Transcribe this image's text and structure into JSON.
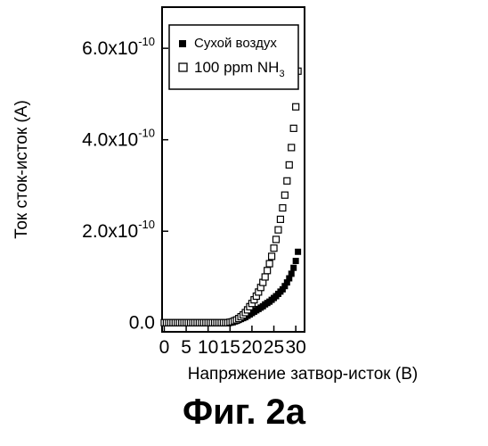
{
  "caption": "Фиг. 2a",
  "chart_data": {
    "type": "scatter",
    "title": "",
    "xlabel": "Напряжение затвор-исток (В)",
    "ylabel": "Ток сток-исток (A)",
    "xlim": [
      -0.5,
      32
    ],
    "ylim": [
      -2e-11,
      6.9e-10
    ],
    "x_ticks": [
      0,
      5,
      10,
      15,
      20,
      25,
      30
    ],
    "x_tick_labels": [
      "0",
      "5",
      "10",
      "15",
      "20",
      "25",
      "30"
    ],
    "y_ticks": [
      0,
      2e-10,
      4e-10,
      6e-10
    ],
    "y_tick_labels": [
      {
        "mantissa": "0.0",
        "exp": ""
      },
      {
        "mantissa": "2.0x10",
        "exp": "-10"
      },
      {
        "mantissa": "4.0x10",
        "exp": "-10"
      },
      {
        "mantissa": "6.0x10",
        "exp": "-10"
      }
    ],
    "legend_position": "top-left",
    "series": [
      {
        "name": "Сухой воздух",
        "marker": "filled-square",
        "color": "#000000",
        "x": [
          0,
          0.5,
          1,
          1.5,
          2,
          2.5,
          3,
          3.5,
          4,
          4.5,
          5,
          5.5,
          6,
          6.5,
          7,
          7.5,
          8,
          8.5,
          9,
          9.5,
          10,
          10.5,
          11,
          11.5,
          12,
          12.5,
          13,
          13.5,
          14,
          14.5,
          15,
          15.5,
          16,
          16.5,
          17,
          17.5,
          18,
          18.5,
          19,
          19.5,
          20,
          20.5,
          21,
          21.5,
          22,
          22.5,
          23,
          23.5,
          24,
          24.5,
          25,
          25.5,
          26,
          26.5,
          27,
          27.5,
          28,
          28.5,
          29,
          29.5,
          30,
          30.5
        ],
        "y": [
          0,
          0,
          0,
          0,
          0,
          0,
          0,
          0,
          0,
          0,
          0,
          0,
          0,
          0,
          0,
          0,
          0,
          0,
          0,
          0,
          0,
          0,
          0,
          0,
          0,
          0,
          0,
          0,
          0,
          0,
          1e-12,
          2e-12,
          3e-12,
          4e-12,
          6e-12,
          8e-12,
          1e-11,
          1.2e-11,
          1.5e-11,
          1.8e-11,
          2.1e-11,
          2.4e-11,
          2.7e-11,
          3e-11,
          3.3e-11,
          3.6e-11,
          4e-11,
          4.3e-11,
          4.6e-11,
          5e-11,
          5.4e-11,
          5.8e-11,
          6.3e-11,
          6.8e-11,
          7.3e-11,
          8e-11,
          8.8e-11,
          9.7e-11,
          1.07e-10,
          1.2e-10,
          1.35e-10,
          1.55e-10
        ]
      },
      {
        "name": "100 ppm NH",
        "name_sub": "3",
        "marker": "open-square",
        "color": "#000000",
        "x": [
          0,
          0.5,
          1,
          1.5,
          2,
          2.5,
          3,
          3.5,
          4,
          4.5,
          5,
          5.5,
          6,
          6.5,
          7,
          7.5,
          8,
          8.5,
          9,
          9.5,
          10,
          10.5,
          11,
          11.5,
          12,
          12.5,
          13,
          13.5,
          14,
          14.5,
          15,
          15.5,
          16,
          16.5,
          17,
          17.5,
          18,
          18.5,
          19,
          19.5,
          20,
          20.5,
          21,
          21.5,
          22,
          22.5,
          23,
          23.5,
          24,
          24.5,
          25,
          25.5,
          26,
          26.5,
          27,
          27.5,
          28,
          28.5,
          29,
          29.5,
          30,
          30.5
        ],
        "y": [
          0,
          0,
          0,
          0,
          0,
          0,
          0,
          0,
          0,
          0,
          0,
          0,
          0,
          0,
          0,
          0,
          0,
          0,
          0,
          0,
          0,
          0,
          0,
          0,
          0,
          0,
          0,
          0,
          0,
          0,
          1e-12,
          2e-12,
          4e-12,
          6e-12,
          9e-12,
          1.3e-11,
          1.7e-11,
          2.2e-11,
          2.8e-11,
          3.5e-11,
          4.2e-11,
          5e-11,
          5.8e-11,
          6.7e-11,
          7.7e-11,
          8.8e-11,
          1e-10,
          1.14e-10,
          1.29e-10,
          1.45e-10,
          1.63e-10,
          1.82e-10,
          2.03e-10,
          2.26e-10,
          2.51e-10,
          2.79e-10,
          3.1e-10,
          3.45e-10,
          3.83e-10,
          4.25e-10,
          4.72e-10,
          5.5e-10
        ]
      }
    ]
  }
}
